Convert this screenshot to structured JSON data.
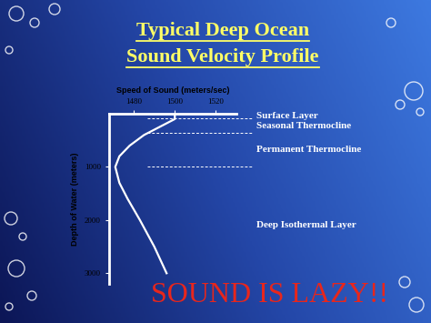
{
  "chart_data": {
    "type": "line",
    "title": "Typical Deep Ocean\nSound Velocity Profile",
    "x_label": "Speed of Sound (meters/sec)",
    "y_label": "Depth of Water (meters)",
    "x": [
      1500,
      1500,
      1495,
      1485,
      1478,
      1473,
      1471,
      1473,
      1477,
      1483,
      1490,
      1496
    ],
    "values": [
      0,
      100,
      200,
      400,
      600,
      800,
      1000,
      1300,
      1600,
      2000,
      2500,
      3000
    ],
    "color": "#ffffff",
    "line_style": "solid",
    "xlim": [
      1468,
      1530
    ],
    "xticks": [
      1480,
      1500,
      1520
    ],
    "ylim": [
      3200,
      0
    ],
    "yticks": [
      1000,
      2000,
      3000
    ],
    "layers": [
      {
        "label": "Surface Layer",
        "top": 0,
        "bottom": 90
      },
      {
        "label": "Seasonal Thermocline",
        "top": 90,
        "bottom": 360
      },
      {
        "label": "Permanent Thermocline",
        "top": 360,
        "bottom": 1000
      },
      {
        "label": "Deep Isothermal Layer",
        "top": 1000,
        "bottom": 3200
      }
    ],
    "annotations": [
      "SOUND IS LAZY!!"
    ]
  }
}
